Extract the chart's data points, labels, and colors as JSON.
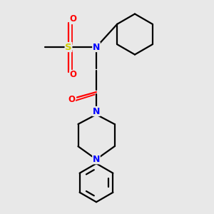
{
  "bg_color": "#e8e8e8",
  "bond_color": "#000000",
  "S_color": "#cccc00",
  "N_color": "#0000ff",
  "O_color": "#ff0000",
  "line_width": 1.6,
  "fig_size": [
    3.0,
    3.0
  ],
  "dpi": 100,
  "xlim": [
    0,
    10
  ],
  "ylim": [
    0,
    10
  ]
}
